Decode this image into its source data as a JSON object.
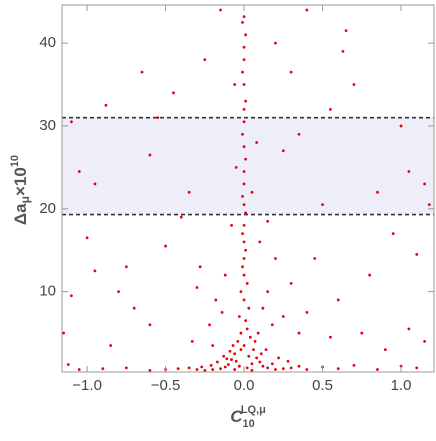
{
  "chart_data": {
    "type": "scatter",
    "xlabel": {
      "base": "C",
      "sub": "10",
      "sup": "LQ,μ"
    },
    "ylabel": {
      "base": "Δa",
      "sub": "μ",
      "mid": "×10",
      "sup": "10"
    },
    "xlim": [
      -1.16,
      1.21
    ],
    "ylim": [
      0.3,
      44.6
    ],
    "xticks": [
      {
        "value": -1,
        "label": "−1.0"
      },
      {
        "value": -0.5,
        "label": "−0.5"
      },
      {
        "value": 0,
        "label": "0.0"
      },
      0.5,
      {
        "value": 1,
        "label": "1.0"
      }
    ],
    "yticks": [
      10,
      20,
      30,
      40
    ],
    "hlines": [
      19.3,
      31.0
    ],
    "band_color": "#eeeefa",
    "series": [
      {
        "color": "#e8000b",
        "x": [
          0.0,
          -0.01,
          0.01,
          0.0,
          0.0,
          -0.01,
          0.0,
          0.01,
          0.0,
          0.0,
          -0.01,
          0.0,
          0.01,
          0.0,
          0.0,
          -0.01,
          0.0,
          0.01,
          0.0,
          -0.01,
          0.0,
          0.01,
          0.0,
          -0.01,
          0.0,
          0.02,
          -0.02,
          0.0,
          0.03,
          -0.03,
          0.01,
          0.02,
          -0.02,
          0.04,
          -0.04,
          0.0,
          0.06,
          -0.06,
          0.08,
          -0.08,
          0.1,
          -0.1,
          0.12,
          -0.12,
          0.15,
          -0.15,
          0.2,
          -0.2,
          0.25,
          -0.25,
          0.3,
          -0.3,
          0.03,
          -0.05,
          0.05,
          -0.02,
          0.07,
          -0.07,
          0.09,
          -0.09,
          0.02,
          -0.03,
          0.05,
          -0.06,
          0.11,
          -0.11,
          0.14,
          -0.13,
          0.18,
          -0.17,
          0.22,
          -0.21,
          0.28,
          -0.27,
          0.35,
          -0.35,
          0.4,
          -0.42,
          0.5,
          -0.5,
          0.6,
          -0.6,
          0.7,
          -0.75,
          0.85,
          -0.9,
          1.0,
          -1.05,
          1.1,
          -1.12,
          0.15,
          -0.12,
          0.2,
          -0.18,
          0.1,
          -0.08,
          0.25,
          -0.22,
          0.3,
          -0.28,
          0.35,
          -0.33,
          0.05,
          -0.05,
          0.08,
          -0.06,
          0.12,
          -0.14,
          0.18,
          -0.2,
          -1.1,
          -1.05,
          -0.95,
          -0.88,
          -0.65,
          -0.6,
          -0.45,
          -0.35,
          -0.55,
          0.55,
          0.65,
          0.63,
          0.4,
          0.3,
          0.35,
          0.7,
          1.0,
          1.05,
          1.15,
          0.85,
          0.5,
          -0.5,
          -1.0,
          -0.95,
          -0.8,
          0.45,
          0.8,
          0.95,
          1.1,
          -0.7,
          0.75,
          -1.15,
          1.15,
          -0.85,
          0.9,
          1.05,
          -0.4,
          0.2,
          -0.15,
          0.25,
          -0.25,
          0.6,
          -0.6,
          0.55,
          -1.1,
          1.18,
          -0.75,
          0.15,
          -0.3,
          0.4
        ],
        "values": [
          43.2,
          42.5,
          41.0,
          39.5,
          38,
          36.5,
          35,
          33,
          32,
          30.5,
          29,
          27.5,
          26,
          24.5,
          23,
          21.5,
          20.5,
          19.5,
          18,
          17,
          16,
          15,
          14,
          13,
          12,
          11,
          10,
          9,
          8,
          7,
          6.5,
          5.5,
          5,
          4.5,
          4,
          3.5,
          3,
          2.5,
          2,
          1.8,
          1.5,
          1.2,
          1,
          0.9,
          0.8,
          0.7,
          0.6,
          0.6,
          0.7,
          0.5,
          0.8,
          0.6,
          2.2,
          1.6,
          1.3,
          3,
          4,
          3.5,
          5,
          2.8,
          0.8,
          1.0,
          0.5,
          0.6,
          2.5,
          1.9,
          3,
          2.2,
          1.3,
          1.5,
          2,
          1.1,
          1.6,
          0.9,
          1,
          0.8,
          0.6,
          0.7,
          0.9,
          0.6,
          0.7,
          0.5,
          1.1,
          0.8,
          0.6,
          0.7,
          1.0,
          0.6,
          0.8,
          1.2,
          10,
          12,
          14,
          9,
          16,
          18,
          7,
          6,
          11,
          13,
          5,
          4,
          22,
          25,
          28,
          35,
          8,
          7.5,
          6,
          3.5,
          30.5,
          24.5,
          23,
          32.5,
          36.5,
          26.5,
          34,
          22,
          31,
          32,
          41.5,
          39,
          44,
          36.5,
          29,
          35,
          30,
          24.5,
          23,
          22,
          20.5,
          15.5,
          16.5,
          12.5,
          10,
          14,
          12,
          17,
          14.5,
          8,
          5,
          5,
          4,
          3.5,
          3,
          5.5,
          19,
          40,
          44,
          27,
          38,
          9,
          6,
          4.5,
          9.5,
          20.5,
          13,
          18.5,
          10.5,
          7.5
        ]
      }
    ]
  }
}
